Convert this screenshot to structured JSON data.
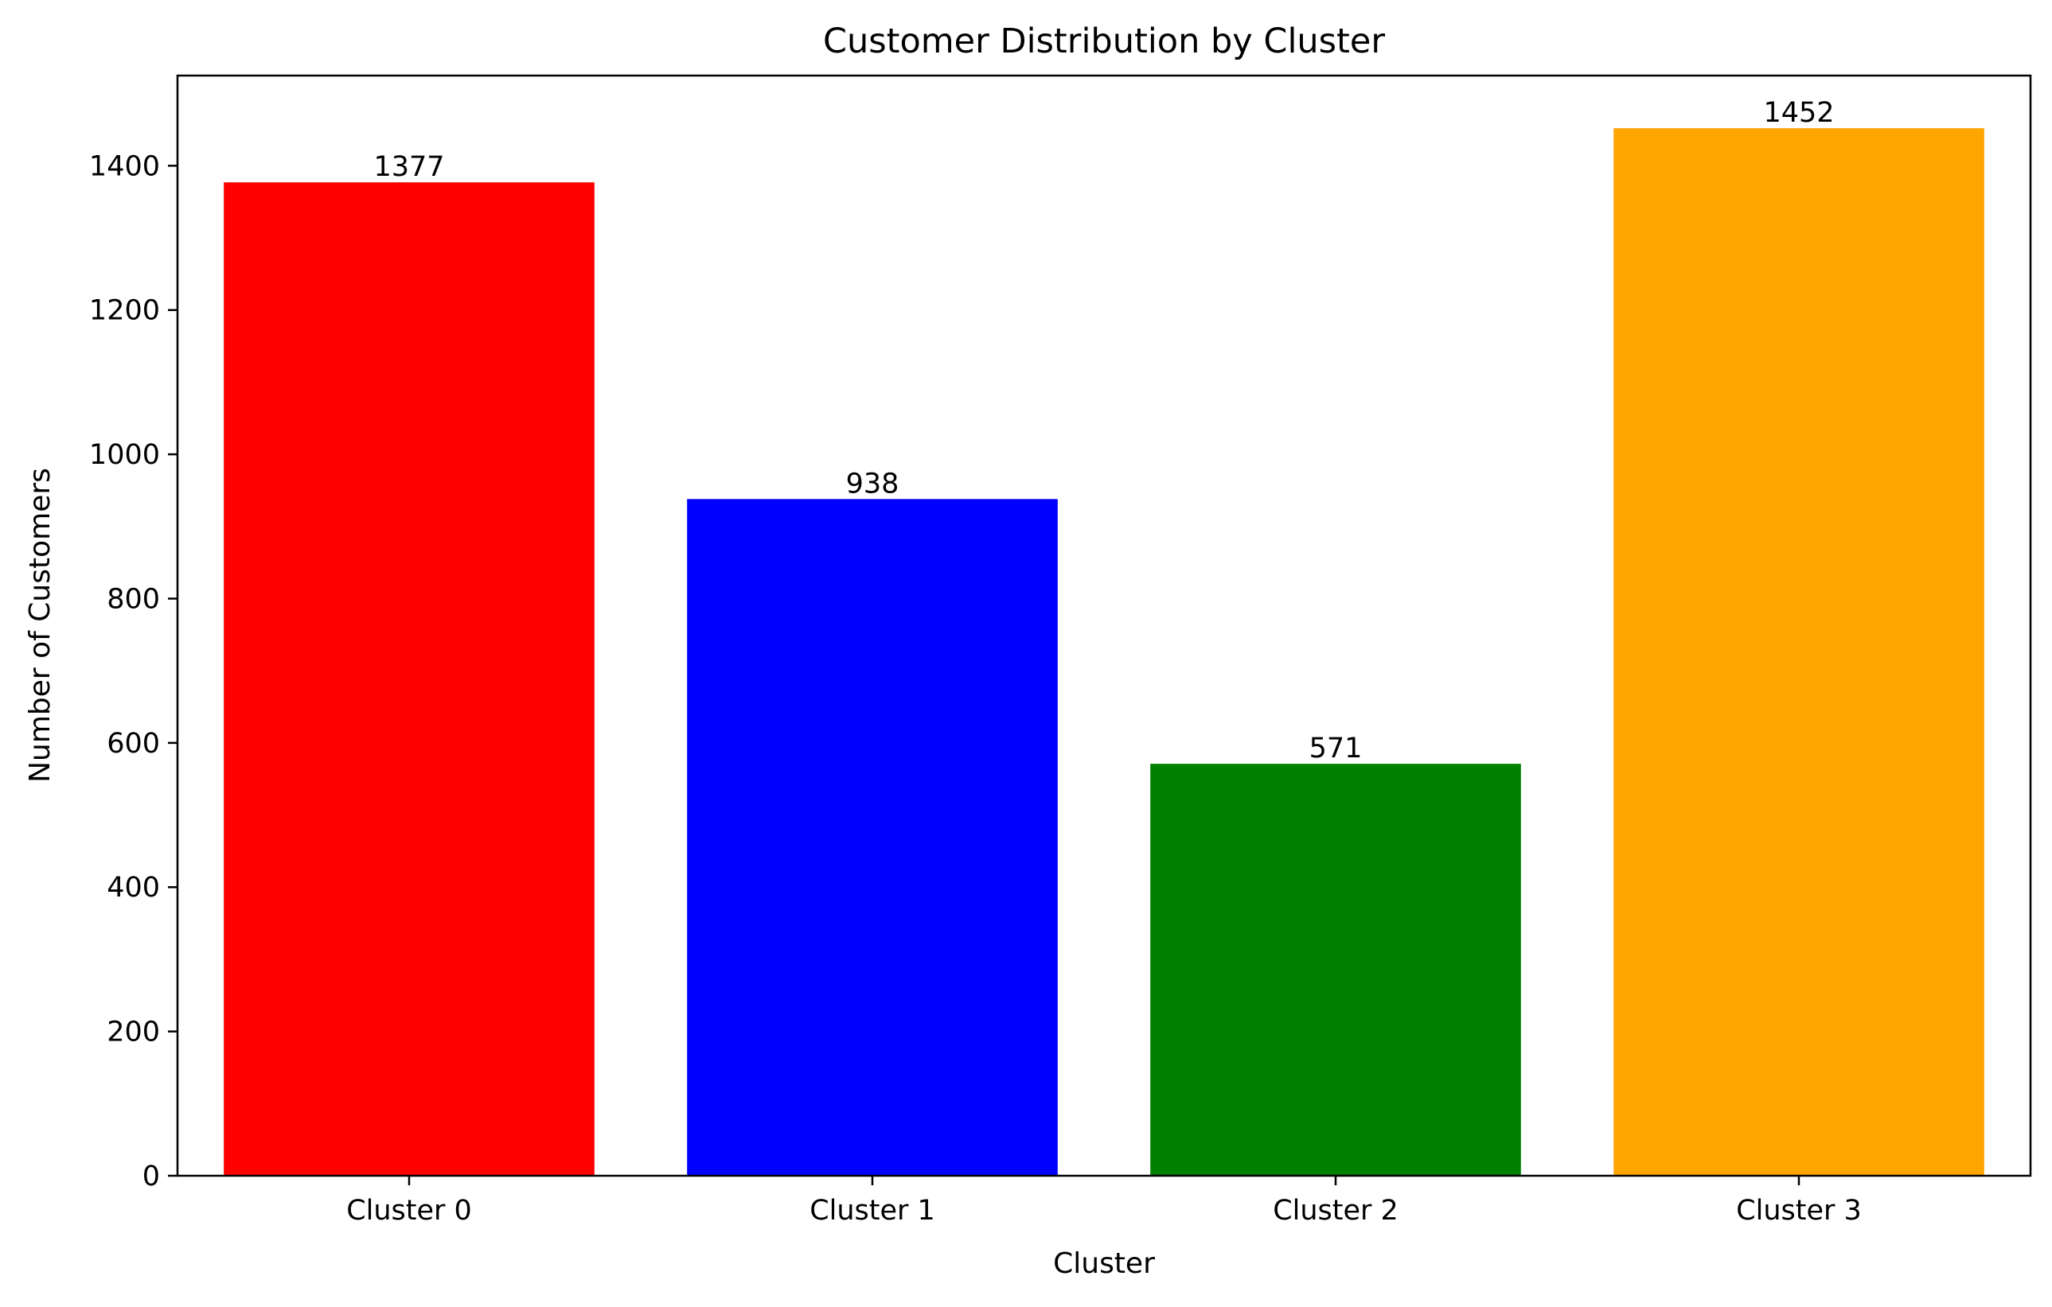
{
  "chart_data": {
    "type": "bar",
    "title": "Customer Distribution by Cluster",
    "xlabel": "Cluster",
    "ylabel": "Number of Customers",
    "categories": [
      "Cluster 0",
      "Cluster 1",
      "Cluster 2",
      "Cluster 3"
    ],
    "values": [
      1377,
      938,
      571,
      1452
    ],
    "data_labels": [
      "1377",
      "938",
      "571",
      "1452"
    ],
    "colors": [
      "#ff0000",
      "#0000ff",
      "#008000",
      "#ffa500"
    ],
    "ylim": [
      0,
      1525
    ],
    "yticks": [
      0,
      200,
      400,
      600,
      800,
      1000,
      1200,
      1400
    ],
    "grid": false,
    "legend": "none"
  }
}
